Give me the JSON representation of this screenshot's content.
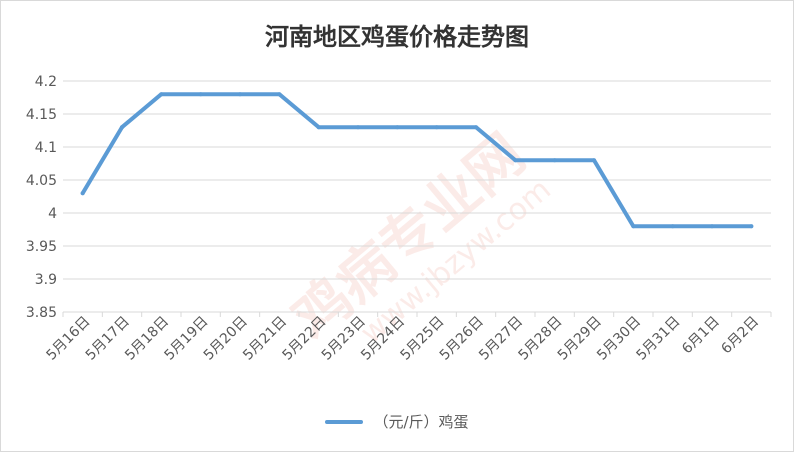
{
  "chart_data": {
    "type": "line",
    "title": "河南地区鸡蛋价格走势图",
    "categories": [
      "5月16日",
      "5月17日",
      "5月18日",
      "5月19日",
      "5月20日",
      "5月21日",
      "5月22日",
      "5月23日",
      "5月24日",
      "5月25日",
      "5月26日",
      "5月27日",
      "5月28日",
      "5月29日",
      "5月30日",
      "5月31日",
      "6月1日",
      "6月2日"
    ],
    "series": [
      {
        "name": "（元/斤）鸡蛋",
        "values": [
          4.03,
          4.13,
          4.18,
          4.18,
          4.18,
          4.18,
          4.13,
          4.13,
          4.13,
          4.13,
          4.13,
          4.08,
          4.08,
          4.08,
          3.98,
          3.98,
          3.98,
          3.98
        ]
      }
    ],
    "ylim": [
      3.85,
      4.2
    ],
    "yticks": [
      "4.2",
      "4.15",
      "4.1",
      "4.05",
      "4",
      "3.95",
      "3.9",
      "3.85"
    ],
    "grid": true,
    "legend": "bottom",
    "line_color": "#5b9bd5"
  },
  "watermark": {
    "text": "鸡病专业网",
    "url": "www.jbzyw.com",
    "color": "#f4c7c0"
  }
}
